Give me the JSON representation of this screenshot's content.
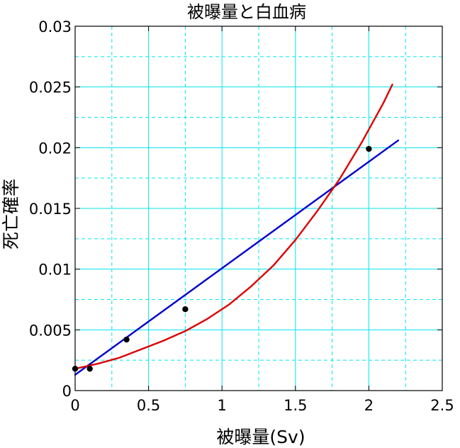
{
  "chart_data": {
    "type": "scatter",
    "title": "被曝量と白血病",
    "xlabel": "被曝量(Sv)",
    "ylabel": "死亡確率",
    "xlim": [
      0,
      2.5
    ],
    "ylim": [
      0,
      0.03
    ],
    "x_ticks": [
      0,
      0.5,
      1,
      1.5,
      2,
      2.5
    ],
    "x_tick_labels": [
      "0",
      "0.5",
      "1",
      "1.5",
      "2",
      "2.5"
    ],
    "y_ticks": [
      0,
      0.005,
      0.01,
      0.015,
      0.02,
      0.025,
      0.03
    ],
    "y_tick_labels": [
      "0",
      "0.005",
      "0.01",
      "0.015",
      "0.02",
      "0.025",
      "0.03"
    ],
    "grid": true,
    "grid_major_color": "#00e5ee",
    "grid_minor_color": "#00e5ee",
    "background": "#ffffff",
    "series": [
      {
        "kind": "points",
        "color": "#000000",
        "x": [
          0.0,
          0.1,
          0.35,
          0.75,
          2.0
        ],
        "y": [
          0.0018,
          0.0018,
          0.0042,
          0.0067,
          0.0199
        ]
      },
      {
        "kind": "line",
        "color": "#0000cc",
        "x": [
          0.0,
          2.2
        ],
        "y": [
          0.0013,
          0.0206
        ]
      },
      {
        "kind": "line",
        "color": "#dd0000",
        "x": [
          0.0,
          0.15,
          0.3,
          0.45,
          0.6,
          0.75,
          0.9,
          1.05,
          1.2,
          1.35,
          1.5,
          1.65,
          1.8,
          1.95,
          2.1,
          2.16
        ],
        "y": [
          0.0018,
          0.0022,
          0.0027,
          0.0034,
          0.0041,
          0.0049,
          0.0059,
          0.0071,
          0.0086,
          0.0103,
          0.0124,
          0.0148,
          0.0174,
          0.0204,
          0.0237,
          0.0252
        ]
      }
    ]
  }
}
